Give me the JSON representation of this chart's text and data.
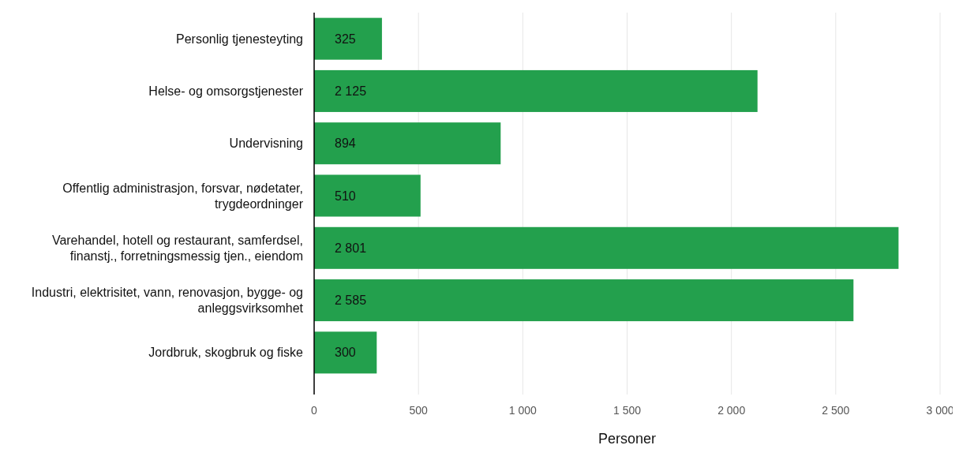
{
  "chart_data": {
    "type": "bar",
    "orientation": "horizontal",
    "xlabel": "Personer",
    "categories": [
      "Personlig tjenesteyting",
      "Helse- og omsorgstjenester",
      "Undervisning",
      "Offentlig administrasjon, forsvar, nødetater, trygdeordninger",
      "Varehandel, hotell og restaurant, samferdsel, finanstj., forretningsmessig tjen., eiendom",
      "Industri, elektrisitet, vann, renovasjon, bygge- og anleggsvirksomhet",
      "Jordbruk, skogbruk og fiske"
    ],
    "values": [
      325,
      2125,
      894,
      510,
      2801,
      2585,
      300
    ],
    "value_labels": [
      "325",
      "2 125",
      "894",
      "510",
      "2 801",
      "2 585",
      "300"
    ],
    "color": "#23a04d",
    "xlim": [
      0,
      3000
    ],
    "xticks": [
      0,
      500,
      {
        "value": 1000,
        "label": "1 000"
      },
      {
        "value": 1500,
        "label": "1 500"
      },
      {
        "value": 2000,
        "label": "2 000"
      },
      {
        "value": 2500,
        "label": "2 500"
      },
      {
        "value": 3000,
        "label": "3 000"
      }
    ],
    "grid": "x"
  }
}
